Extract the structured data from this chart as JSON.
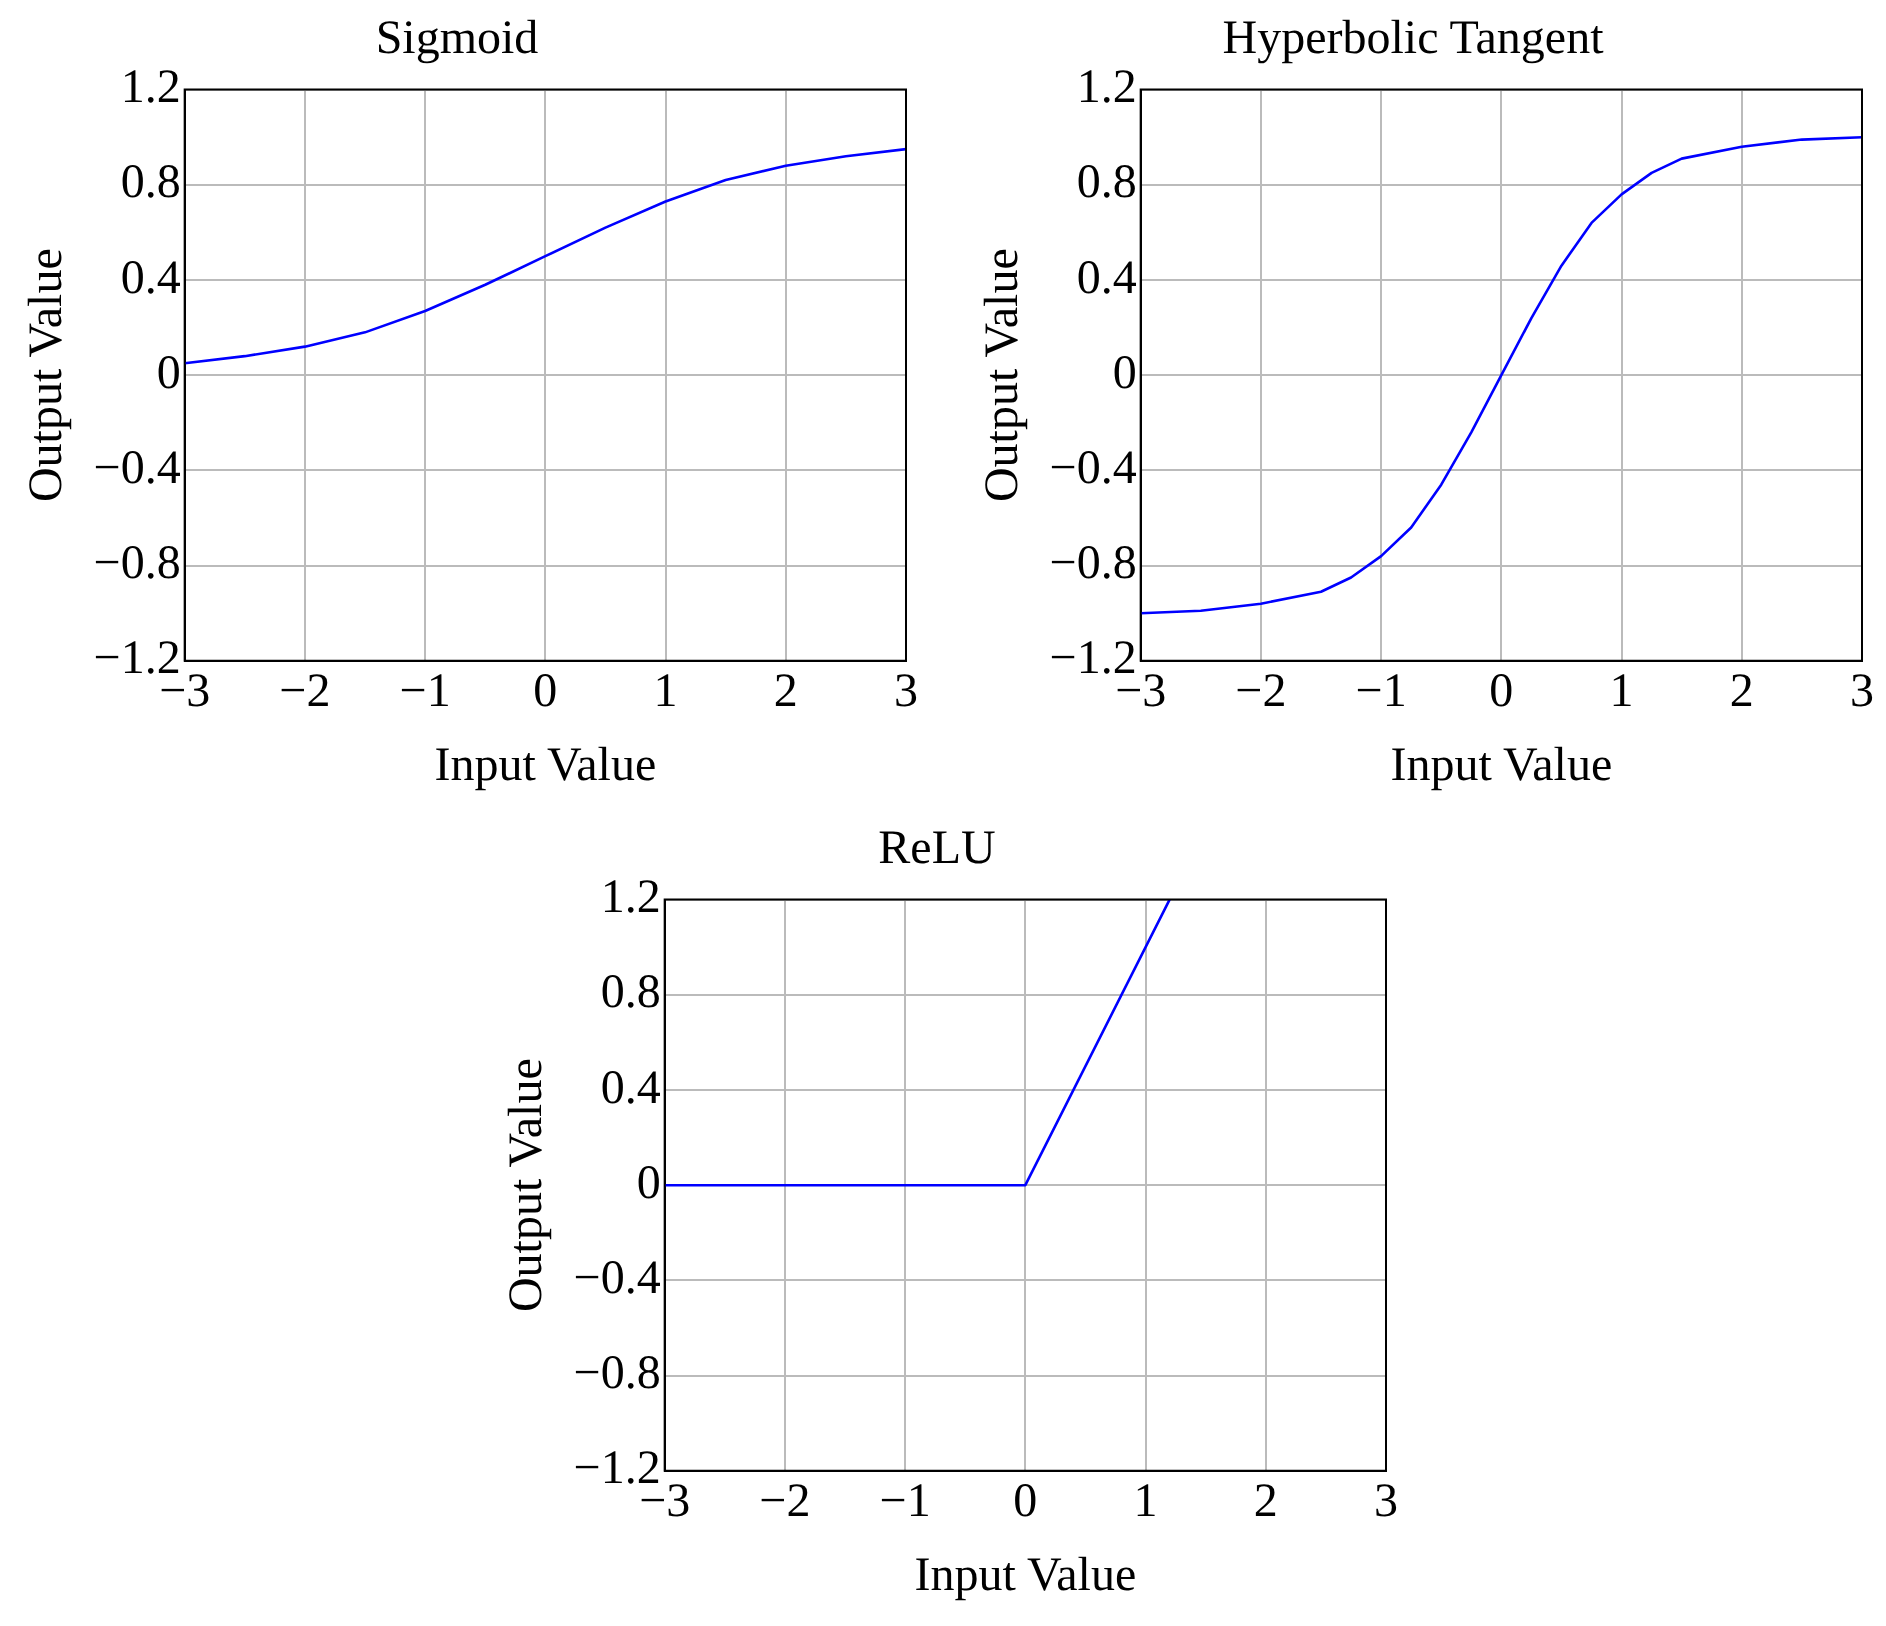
{
  "chart_data": [
    {
      "type": "line",
      "title": "Sigmoid",
      "xlabel": "Input Value",
      "ylabel": "Output Value",
      "x": [
        -3,
        -2.5,
        -2,
        -1.5,
        -1,
        -0.5,
        0,
        0.5,
        1,
        1.5,
        2,
        2.5,
        3
      ],
      "series": [
        {
          "color": "#0000ff",
          "values": [
            0.05,
            0.08,
            0.12,
            0.18,
            0.27,
            0.38,
            0.5,
            0.62,
            0.73,
            0.82,
            0.88,
            0.92,
            0.95
          ]
        }
      ],
      "xlim": [
        -3,
        3
      ],
      "xticks": [
        {
          "value": -3,
          "label": "−3"
        },
        {
          "value": -2,
          "label": "−2"
        },
        {
          "value": -1,
          "label": "−1"
        },
        0,
        1,
        2,
        3
      ],
      "ylim": [
        -1.2,
        1.2
      ],
      "yticks": [
        {
          "value": -1.2,
          "label": "−1.2"
        },
        {
          "value": -0.8,
          "label": "−0.8"
        },
        {
          "value": -0.4,
          "label": "−0.4"
        },
        0,
        0.4,
        0.8,
        1.2
      ],
      "grid": true,
      "legend": false,
      "marker": "none",
      "line_style": "solid"
    },
    {
      "type": "line",
      "title": "Hyperbolic Tangent",
      "xlabel": "Input Value",
      "ylabel": "Output Value",
      "x": [
        -3,
        -2.5,
        -2,
        -1.5,
        -1.25,
        -1,
        -0.75,
        -0.5,
        -0.25,
        0,
        0.25,
        0.5,
        0.75,
        1,
        1.25,
        1.5,
        2,
        2.5,
        3
      ],
      "series": [
        {
          "color": "#0000ff",
          "values": [
            -1,
            -0.99,
            -0.96,
            -0.91,
            -0.85,
            -0.76,
            -0.64,
            -0.46,
            -0.24,
            0,
            0.24,
            0.46,
            0.64,
            0.76,
            0.85,
            0.91,
            0.96,
            0.99,
            1
          ]
        }
      ],
      "xlim": [
        -3,
        3
      ],
      "xticks": [
        {
          "value": -3,
          "label": "−3"
        },
        {
          "value": -2,
          "label": "−2"
        },
        {
          "value": -1,
          "label": "−1"
        },
        0,
        1,
        2,
        3
      ],
      "ylim": [
        -1.2,
        1.2
      ],
      "yticks": [
        {
          "value": -1.2,
          "label": "−1.2"
        },
        {
          "value": -0.8,
          "label": "−0.8"
        },
        {
          "value": -0.4,
          "label": "−0.4"
        },
        0,
        0.4,
        0.8,
        1.2
      ],
      "grid": true,
      "legend": false,
      "marker": "none",
      "line_style": "solid"
    },
    {
      "type": "line",
      "title": "ReLU",
      "xlabel": "Input Value",
      "ylabel": "Output Value",
      "x": [
        -3,
        0,
        1.2
      ],
      "series": [
        {
          "color": "#0000ff",
          "values": [
            0,
            0,
            1.2
          ]
        }
      ],
      "xlim": [
        -3,
        3
      ],
      "xticks": [
        {
          "value": -3,
          "label": "−3"
        },
        {
          "value": -2,
          "label": "−2"
        },
        {
          "value": -1,
          "label": "−1"
        },
        0,
        1,
        2,
        3
      ],
      "ylim": [
        -1.2,
        1.2
      ],
      "yticks": [
        {
          "value": -1.2,
          "label": "−1.2"
        },
        {
          "value": -0.8,
          "label": "−0.8"
        },
        {
          "value": -0.4,
          "label": "−0.4"
        },
        0,
        0.4,
        0.8,
        1.2
      ],
      "grid": true,
      "legend": false,
      "marker": "none",
      "line_style": "solid"
    }
  ]
}
